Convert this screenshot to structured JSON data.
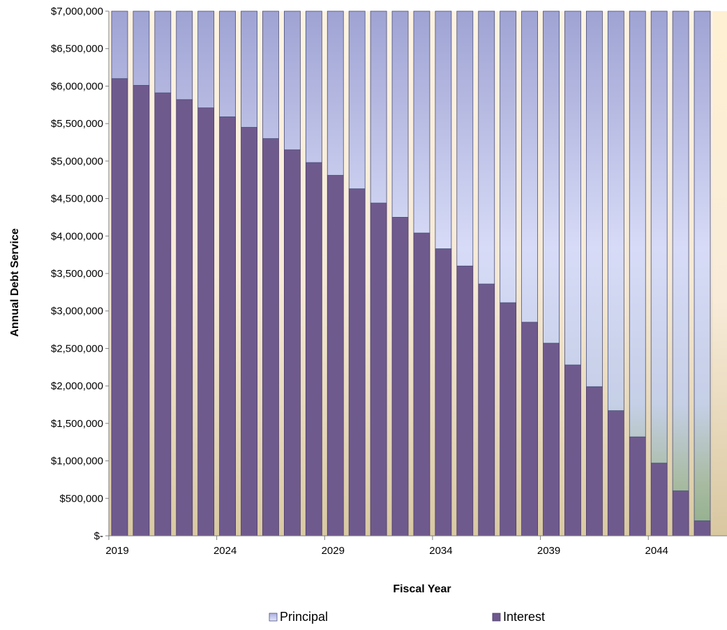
{
  "chart_data": {
    "type": "bar",
    "stacked": true,
    "xlabel": "Fiscal Year",
    "ylabel": "Annual Debt Service",
    "ylim": [
      0,
      7000000
    ],
    "y_ticks": [
      0,
      500000,
      1000000,
      1500000,
      2000000,
      2500000,
      3000000,
      3500000,
      4000000,
      4500000,
      5000000,
      5500000,
      6000000,
      6500000,
      7000000
    ],
    "y_tick_labels": [
      "$-",
      "$500,000",
      "$1,000,000",
      "$1,500,000",
      "$2,000,000",
      "$2,500,000",
      "$3,000,000",
      "$3,500,000",
      "$4,000,000",
      "$4,500,000",
      "$5,000,000",
      "$5,500,000",
      "$6,000,000",
      "$6,500,000",
      "$7,000,000"
    ],
    "categories": [
      2019,
      2020,
      2021,
      2022,
      2023,
      2024,
      2025,
      2026,
      2027,
      2028,
      2029,
      2030,
      2031,
      2032,
      2033,
      2034,
      2035,
      2036,
      2037,
      2038,
      2039,
      2040,
      2041,
      2042,
      2043,
      2044,
      2045,
      2046
    ],
    "x_tick_labels": [
      "2019",
      "2024",
      "2029",
      "2034",
      "2039",
      "2044"
    ],
    "series": [
      {
        "name": "Interest",
        "color": "#6f5a8e",
        "values": [
          6100000,
          6010000,
          5910000,
          5820000,
          5710000,
          5590000,
          5450000,
          5300000,
          5150000,
          4980000,
          4810000,
          4630000,
          4440000,
          4250000,
          4040000,
          3830000,
          3600000,
          3360000,
          3110000,
          2850000,
          2570000,
          2280000,
          1990000,
          1670000,
          1320000,
          970000,
          600000,
          200000
        ]
      },
      {
        "name": "Principal",
        "color": "#d8dcf8",
        "values": [
          900000,
          990000,
          1090000,
          1180000,
          1290000,
          1410000,
          1550000,
          1700000,
          1850000,
          2020000,
          2190000,
          2370000,
          2560000,
          2750000,
          2960000,
          3170000,
          3400000,
          3640000,
          3890000,
          4150000,
          4430000,
          4720000,
          5010000,
          5330000,
          5680000,
          6030000,
          6400000,
          6800000
        ]
      }
    ],
    "legend": {
      "position": "bottom",
      "items": [
        "Principal",
        "Interest"
      ]
    },
    "grid": false
  }
}
